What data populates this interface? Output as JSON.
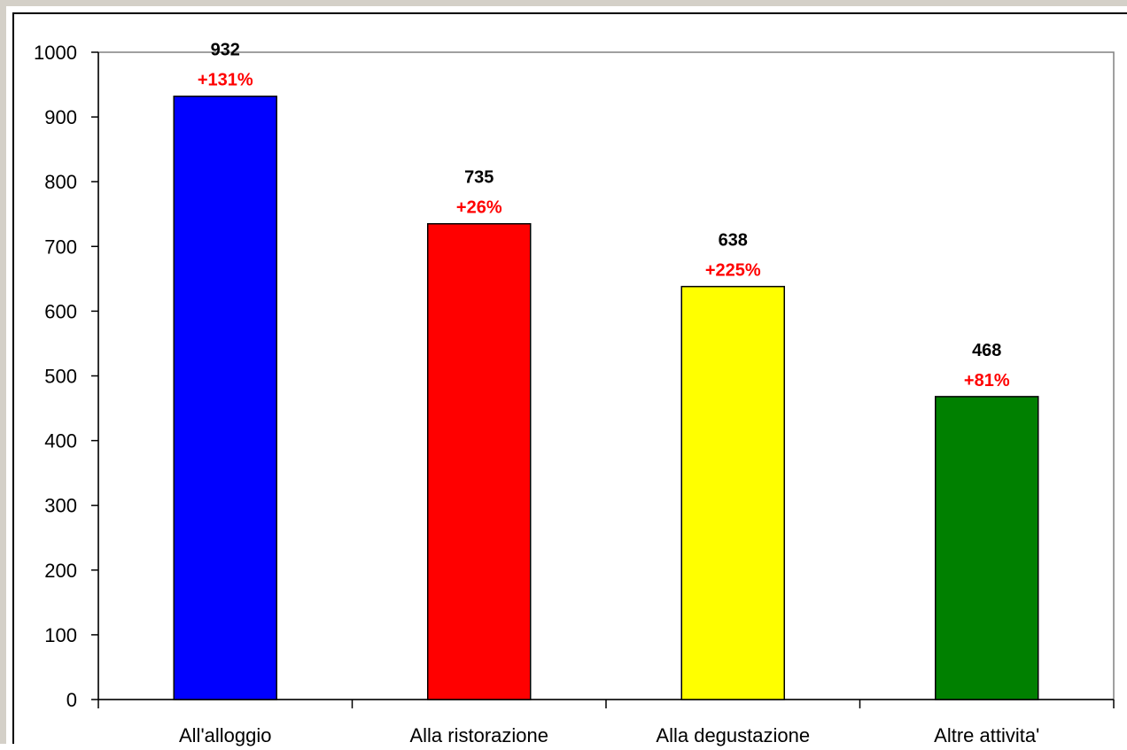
{
  "chart_data": {
    "type": "bar",
    "categories": [
      "All'alloggio",
      "Alla ristorazione",
      "Alla degustazione",
      "Altre attivita'"
    ],
    "values": [
      932,
      735,
      638,
      468
    ],
    "annotations": [
      "+131%",
      "+26%",
      "+225%",
      "+81%"
    ],
    "value_labels": [
      "932",
      "735",
      "638",
      "468"
    ],
    "bar_colors": [
      "#0000ff",
      "#ff0000",
      "#ffff00",
      "#008000"
    ],
    "annotation_color": "#ff0000",
    "ylim": [
      0,
      1000
    ],
    "yticks": [
      0,
      100,
      200,
      300,
      400,
      500,
      600,
      700,
      800,
      900,
      1000
    ],
    "grid": false,
    "title": "",
    "xlabel": "",
    "ylabel": ""
  }
}
